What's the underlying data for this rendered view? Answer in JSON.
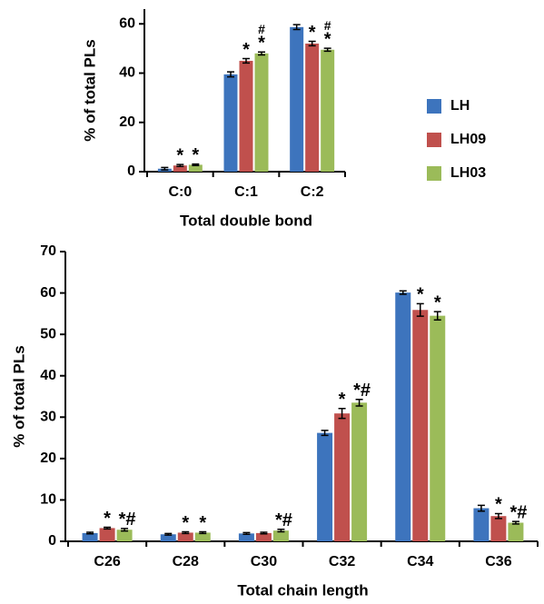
{
  "chart_data": [
    {
      "type": "bar",
      "x_label": "Total double bond",
      "y_label": "% of total PLs",
      "categories": [
        "C:0",
        "C:1",
        "C:2"
      ],
      "ylim": [
        0,
        66
      ],
      "yticks": [
        0,
        20,
        40,
        60
      ],
      "legend": "right",
      "series": [
        {
          "name": "LH",
          "color": "#3d74bd",
          "values": [
            1.2,
            39.5,
            58.7
          ],
          "errors": [
            0.5,
            1.0,
            1.0
          ],
          "annotations": [
            null,
            null,
            null
          ]
        },
        {
          "name": "LH09",
          "color": "#c0504d",
          "values": [
            2.5,
            45,
            52
          ],
          "errors": [
            0.4,
            0.9,
            0.9
          ],
          "annotations": [
            "*",
            "*",
            "*"
          ]
        },
        {
          "name": "LH03",
          "color": "#9bbb59",
          "values": [
            2.8,
            48,
            49.5
          ],
          "errors": [
            0.3,
            0.6,
            0.6
          ],
          "annotations": [
            "*",
            [
              "#",
              "*"
            ],
            [
              "#",
              "*"
            ]
          ]
        }
      ]
    },
    {
      "type": "bar",
      "x_label": "Total chain length",
      "y_label": "% of total PLs",
      "categories": [
        "C26",
        "C28",
        "C30",
        "C32",
        "C34",
        "C36"
      ],
      "ylim": [
        0,
        70
      ],
      "yticks": [
        0,
        10,
        20,
        30,
        40,
        50,
        60,
        70
      ],
      "series": [
        {
          "color": "#3d74bd",
          "values": [
            2.0,
            1.7,
            1.9,
            26.2,
            60.1,
            8.0
          ],
          "errors": [
            0.2,
            0.2,
            0.2,
            0.6,
            0.4,
            0.7
          ],
          "annotations": [
            null,
            null,
            null,
            null,
            null,
            null
          ]
        },
        {
          "color": "#c0504d",
          "values": [
            3.2,
            2.1,
            2.0,
            30.9,
            55.9,
            6.1
          ],
          "errors": [
            0.2,
            0.2,
            0.2,
            1.2,
            1.5,
            0.6
          ],
          "annotations": [
            "*",
            "*",
            null,
            "*",
            "*",
            "*"
          ]
        },
        {
          "color": "#9bbb59",
          "values": [
            2.8,
            2.1,
            2.6,
            33.5,
            54.5,
            4.5
          ],
          "errors": [
            0.3,
            0.2,
            0.3,
            0.8,
            1.0,
            0.3
          ],
          "annotations": [
            "*#",
            "*",
            "*#",
            "*#",
            "*",
            "*#"
          ]
        }
      ]
    }
  ]
}
